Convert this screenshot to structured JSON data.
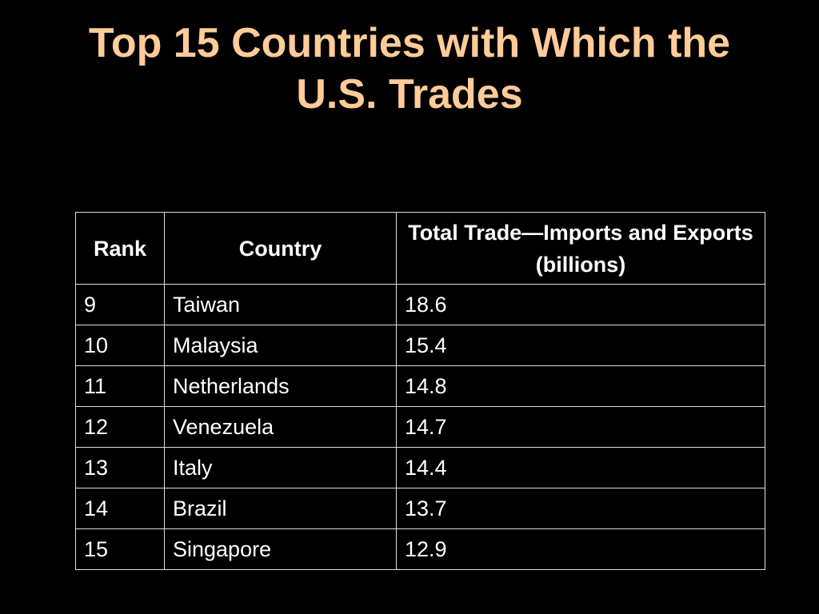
{
  "title": "Top 15 Countries with Which the U.S. Trades",
  "table": {
    "header": [
      "Rank",
      "Country",
      "Total Trade—Imports and Exports (billions)"
    ],
    "rows": [
      [
        9,
        "Taiwan",
        18.6
      ],
      [
        10,
        "Malaysia",
        15.4
      ],
      [
        11,
        "Netherlands",
        14.8
      ],
      [
        12,
        "Venezuela",
        14.7
      ],
      [
        13,
        "Italy",
        14.4
      ],
      [
        14,
        "Brazil",
        13.7
      ],
      [
        15,
        "Singapore",
        12.9
      ]
    ]
  }
}
